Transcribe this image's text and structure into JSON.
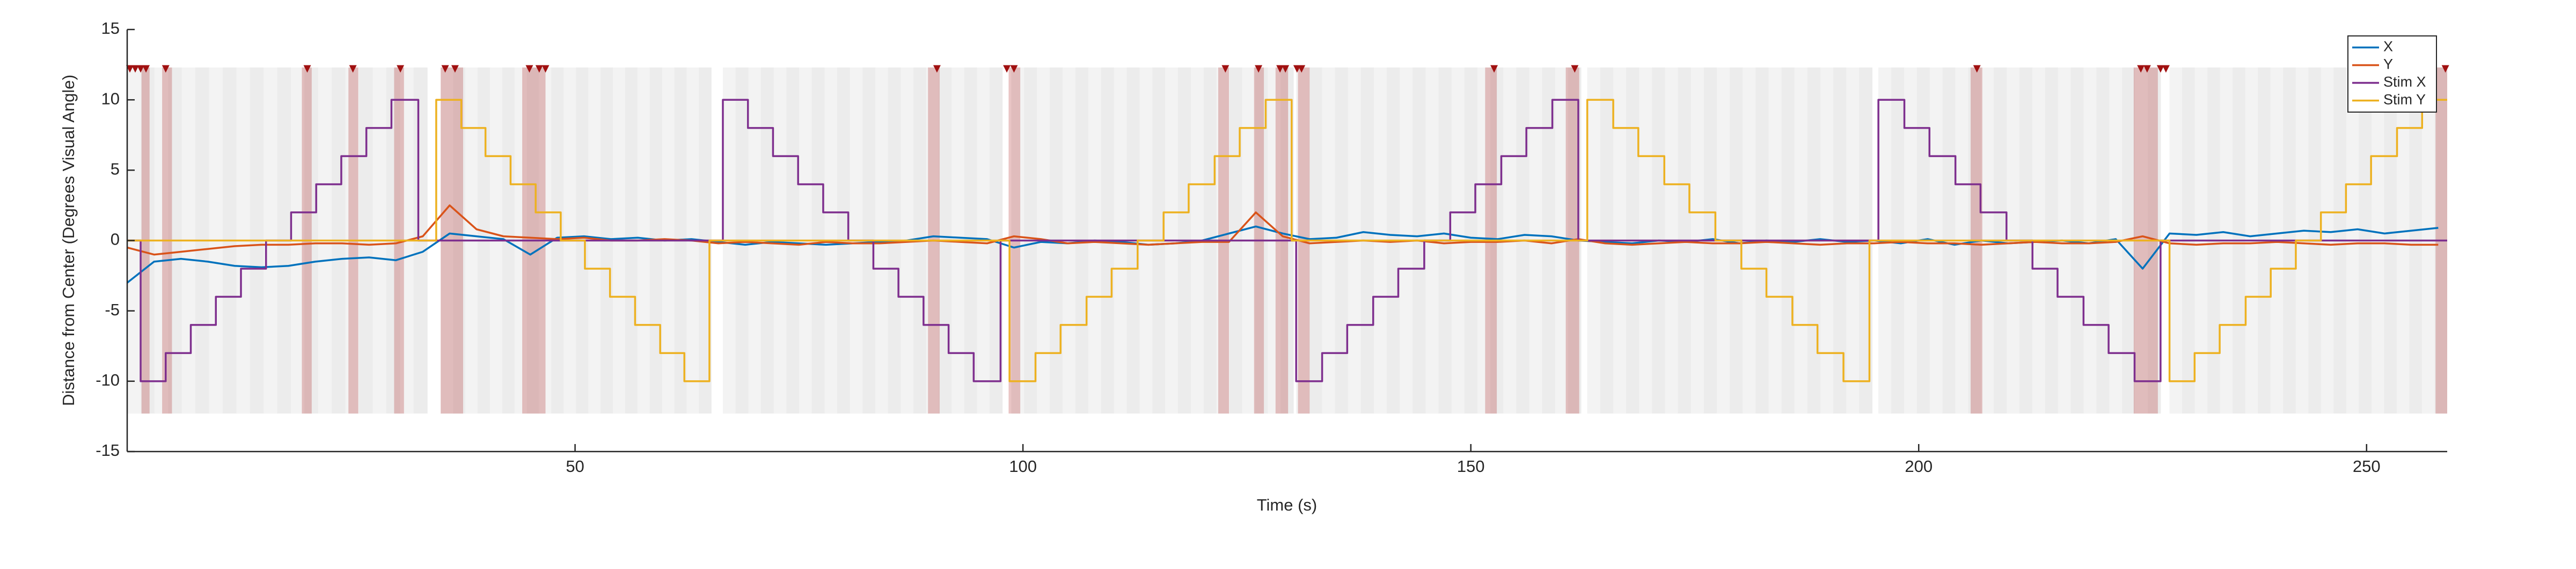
{
  "chart_data": {
    "type": "line",
    "xlabel": "Time (s)",
    "ylabel": "Distance from Center (Degrees Visual Angle)",
    "xlim": [
      0,
      259
    ],
    "ylim": [
      -15,
      15
    ],
    "xticks": [
      50,
      100,
      150,
      200,
      250
    ],
    "yticks": [
      -15,
      -10,
      -5,
      0,
      5,
      10,
      15
    ],
    "legend_location": "northeast",
    "shade_ylim": [
      -12.3,
      12.3
    ],
    "trial_segments": [
      [
        0,
        33.5
      ],
      [
        35,
        65.2
      ],
      [
        66.5,
        97.7
      ],
      [
        98.7,
        130.2
      ],
      [
        130.5,
        162.3
      ],
      [
        163,
        194.8
      ],
      [
        195.5,
        227
      ],
      [
        228,
        259
      ]
    ],
    "blink_intervals": [
      [
        1.6,
        2.5
      ],
      [
        3.9,
        5.0
      ],
      [
        19.5,
        20.6
      ],
      [
        24.7,
        25.8
      ],
      [
        29.8,
        30.9
      ],
      [
        35,
        37.5
      ],
      [
        44.1,
        46.7
      ],
      [
        89.4,
        90.7
      ],
      [
        98.4,
        99.7
      ],
      [
        121.8,
        123
      ],
      [
        125.8,
        126.9
      ],
      [
        128.2,
        129.6
      ],
      [
        130.7,
        132
      ],
      [
        151.6,
        152.9
      ],
      [
        160.6,
        162.1
      ],
      [
        205.8,
        207.1
      ],
      [
        224,
        226.7
      ],
      [
        257.7,
        259
      ]
    ],
    "blink_color": "#b03030",
    "marker_y": 12.2,
    "blink_markers": [
      0.3,
      0.9,
      1.5,
      2.1,
      4.3,
      20.1,
      25.2,
      30.5,
      35.5,
      36.6,
      44.9,
      46.0,
      46.7,
      90.4,
      98.2,
      99.0,
      122.6,
      126.3,
      128.7,
      129.3,
      130.6,
      131.1,
      152.6,
      161.6,
      206.5,
      224.8,
      225.5,
      227.0,
      227.6,
      258.8
    ],
    "series": [
      {
        "name": "X",
        "color": "#0072bd",
        "x": [
          0,
          3,
          6,
          9,
          12,
          15,
          18,
          21,
          24,
          27,
          30,
          33,
          36,
          39,
          42,
          45,
          48,
          51,
          54,
          57,
          60,
          63,
          66,
          69,
          72,
          75,
          78,
          81,
          84,
          87,
          90,
          93,
          96,
          99,
          102,
          105,
          108,
          111,
          114,
          117,
          120,
          123,
          126,
          129,
          132,
          135,
          138,
          141,
          144,
          147,
          150,
          153,
          156,
          159,
          162,
          165,
          168,
          171,
          174,
          177,
          180,
          183,
          186,
          189,
          192,
          195,
          198,
          201,
          204,
          207,
          210,
          213,
          216,
          219,
          222,
          225,
          228,
          231,
          234,
          237,
          240,
          243,
          246,
          249,
          252,
          255,
          258
        ],
        "values": [
          -3,
          -1.5,
          -1.3,
          -1.5,
          -1.8,
          -1.9,
          -1.8,
          -1.5,
          -1.3,
          -1.2,
          -1.4,
          -0.8,
          0.5,
          0.3,
          0.1,
          -1,
          0.2,
          0.3,
          0.1,
          0.2,
          0,
          0.1,
          -0.1,
          -0.3,
          -0.1,
          -0.2,
          -0.3,
          -0.2,
          -0.1,
          0,
          0.3,
          0.2,
          0.1,
          -0.5,
          -0.1,
          -0.2,
          0,
          -0.1,
          -0.3,
          -0.2,
          0,
          0.5,
          1,
          0.5,
          0.1,
          0.2,
          0.6,
          0.4,
          0.3,
          0.5,
          0.2,
          0.1,
          0.4,
          0.3,
          0,
          -0.1,
          -0.2,
          0,
          -0.1,
          0.1,
          -0.2,
          0,
          -0.1,
          0.1,
          -0.1,
          0,
          -0.2,
          0.1,
          -0.3,
          0,
          -0.2,
          -0.1,
          0,
          -0.2,
          0.1,
          -2,
          0.5,
          0.4,
          0.6,
          0.3,
          0.5,
          0.7,
          0.6,
          0.8,
          0.5,
          0.7,
          0.9
        ]
      },
      {
        "name": "Y",
        "color": "#d95319",
        "x": [
          0,
          3,
          6,
          9,
          12,
          15,
          18,
          21,
          24,
          27,
          30,
          33,
          36,
          39,
          42,
          45,
          48,
          51,
          54,
          57,
          60,
          63,
          66,
          69,
          72,
          75,
          78,
          81,
          84,
          87,
          90,
          93,
          96,
          99,
          102,
          105,
          108,
          111,
          114,
          117,
          120,
          123,
          126,
          129,
          132,
          135,
          138,
          141,
          144,
          147,
          150,
          153,
          156,
          159,
          162,
          165,
          168,
          171,
          174,
          177,
          180,
          183,
          186,
          189,
          192,
          195,
          198,
          201,
          204,
          207,
          210,
          213,
          216,
          219,
          222,
          225,
          228,
          231,
          234,
          237,
          240,
          243,
          246,
          249,
          252,
          255,
          258
        ],
        "values": [
          -0.5,
          -1,
          -0.8,
          -0.6,
          -0.4,
          -0.3,
          -0.3,
          -0.2,
          -0.2,
          -0.3,
          -0.2,
          0.3,
          2.5,
          0.8,
          0.3,
          0.2,
          0.1,
          0.2,
          0,
          0,
          0.1,
          0,
          -0.2,
          -0.1,
          -0.2,
          -0.3,
          -0.1,
          -0.2,
          -0.2,
          -0.1,
          0,
          -0.1,
          -0.2,
          0.3,
          0.1,
          -0.2,
          -0.1,
          -0.2,
          -0.3,
          -0.2,
          -0.1,
          -0.1,
          2,
          0.3,
          -0.2,
          -0.1,
          0,
          -0.1,
          0,
          -0.2,
          -0.1,
          -0.1,
          0,
          -0.2,
          0.1,
          -0.2,
          -0.3,
          -0.2,
          -0.1,
          -0.2,
          -0.2,
          -0.1,
          -0.2,
          -0.3,
          -0.2,
          -0.2,
          -0.1,
          -0.2,
          -0.2,
          -0.3,
          -0.2,
          -0.1,
          -0.2,
          -0.2,
          -0.1,
          0.3,
          -0.2,
          -0.3,
          -0.2,
          -0.2,
          -0.1,
          -0.2,
          -0.3,
          -0.2,
          -0.2,
          -0.3,
          -0.3
        ]
      },
      {
        "name": "Stim X",
        "color": "#7e2f8e",
        "x": [
          0,
          1.5,
          1.5,
          4.3,
          4.3,
          7.1,
          7.1,
          9.9,
          9.9,
          12.7,
          12.7,
          15.5,
          15.5,
          18.3,
          18.3,
          21.1,
          21.1,
          23.9,
          23.9,
          26.7,
          26.7,
          29.5,
          29.5,
          32.5,
          32.5,
          66.5,
          66.5,
          69.3,
          69.3,
          72.1,
          72.1,
          74.9,
          74.9,
          77.7,
          77.7,
          80.5,
          80.5,
          83.3,
          83.3,
          86.1,
          86.1,
          88.9,
          88.9,
          91.7,
          91.7,
          94.5,
          94.5,
          97.5,
          97.5,
          130.5,
          130.5,
          133.4,
          133.4,
          136.2,
          136.2,
          139.1,
          139.1,
          141.9,
          141.9,
          144.8,
          144.8,
          147.7,
          147.7,
          150.5,
          150.5,
          153.4,
          153.4,
          156.2,
          156.2,
          159.1,
          159.1,
          162,
          162,
          195.5,
          195.5,
          198.4,
          198.4,
          201.2,
          201.2,
          204.1,
          204.1,
          206.9,
          206.9,
          209.8,
          209.8,
          212.7,
          212.7,
          215.5,
          215.5,
          218.4,
          218.4,
          221.2,
          221.2,
          224.1,
          224.1,
          227,
          227,
          259
        ],
        "values": [
          0,
          0,
          -10,
          -10,
          -8,
          -8,
          -6,
          -6,
          -4,
          -4,
          -2,
          -2,
          0,
          0,
          2,
          2,
          4,
          4,
          6,
          6,
          8,
          8,
          10,
          10,
          0,
          0,
          10,
          10,
          8,
          8,
          6,
          6,
          4,
          4,
          2,
          2,
          0,
          0,
          -2,
          -2,
          -4,
          -4,
          -6,
          -6,
          -8,
          -8,
          -10,
          -10,
          0,
          0,
          -10,
          -10,
          -8,
          -8,
          -6,
          -6,
          -4,
          -4,
          -2,
          -2,
          0,
          0,
          2,
          2,
          4,
          4,
          6,
          6,
          8,
          8,
          10,
          10,
          0,
          0,
          10,
          10,
          8,
          8,
          6,
          6,
          4,
          4,
          2,
          2,
          0,
          0,
          -2,
          -2,
          -4,
          -4,
          -6,
          -6,
          -8,
          -8,
          -10,
          -10,
          0,
          0
        ]
      },
      {
        "name": "Stim Y",
        "color": "#edb120",
        "x": [
          0,
          34.5,
          34.5,
          37.3,
          37.3,
          40,
          40,
          42.8,
          42.8,
          45.6,
          45.6,
          48.4,
          48.4,
          51.1,
          51.1,
          53.9,
          53.9,
          56.7,
          56.7,
          59.5,
          59.5,
          62.2,
          62.2,
          65,
          65,
          98.5,
          98.5,
          101.4,
          101.4,
          104.2,
          104.2,
          107.1,
          107.1,
          109.9,
          109.9,
          112.8,
          112.8,
          115.7,
          115.7,
          118.5,
          118.5,
          121.4,
          121.4,
          124.2,
          124.2,
          127.1,
          127.1,
          130,
          130,
          163,
          163,
          165.9,
          165.9,
          168.7,
          168.7,
          171.6,
          171.6,
          174.4,
          174.4,
          177.3,
          177.3,
          180.2,
          180.2,
          183,
          183,
          185.9,
          185.9,
          188.7,
          188.7,
          191.6,
          191.6,
          194.5,
          194.5,
          228,
          228,
          230.8,
          230.8,
          233.6,
          233.6,
          236.5,
          236.5,
          239.3,
          239.3,
          242.1,
          242.1,
          244.9,
          244.9,
          247.7,
          247.7,
          250.5,
          250.5,
          253.4,
          253.4,
          256.2,
          256.2,
          259
        ],
        "values": [
          0,
          0,
          10,
          10,
          8,
          8,
          6,
          6,
          4,
          4,
          2,
          2,
          0,
          0,
          -2,
          -2,
          -4,
          -4,
          -6,
          -6,
          -8,
          -8,
          -10,
          -10,
          0,
          0,
          -10,
          -10,
          -8,
          -8,
          -6,
          -6,
          -4,
          -4,
          -2,
          -2,
          0,
          0,
          2,
          2,
          4,
          4,
          6,
          6,
          8,
          8,
          10,
          10,
          0,
          0,
          10,
          10,
          8,
          8,
          6,
          6,
          4,
          4,
          2,
          2,
          0,
          0,
          -2,
          -2,
          -4,
          -4,
          -6,
          -6,
          -8,
          -8,
          -10,
          -10,
          0,
          0,
          -10,
          -10,
          -8,
          -8,
          -6,
          -6,
          -4,
          -4,
          -2,
          -2,
          0,
          0,
          2,
          2,
          4,
          4,
          6,
          6,
          8,
          8,
          10,
          10
        ]
      }
    ]
  }
}
